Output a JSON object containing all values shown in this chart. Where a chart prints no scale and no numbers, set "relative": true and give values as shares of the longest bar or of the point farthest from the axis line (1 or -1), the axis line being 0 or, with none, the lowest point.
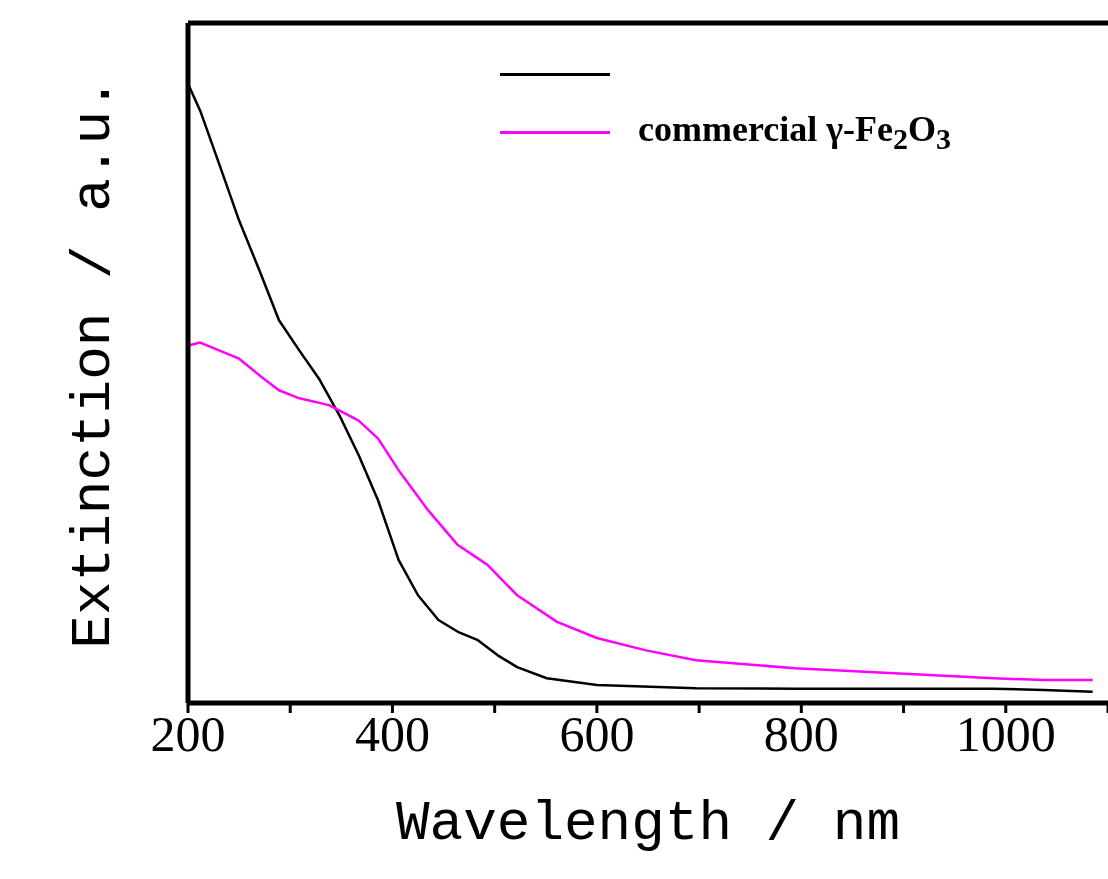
{
  "chart_data": {
    "type": "line",
    "xlabel": "Wavelength / nm",
    "ylabel": "Extinction / a.u.",
    "relative": true,
    "xlim": [
      200,
      1100
    ],
    "xticks": [
      200,
      {
        "value": 300,
        "label": null
      },
      400,
      {
        "value": 500,
        "label": null
      },
      600,
      {
        "value": 700,
        "label": null
      },
      800,
      {
        "value": 900,
        "label": null
      },
      1000,
      {
        "value": 1100,
        "label": null
      }
    ],
    "legend": "top right",
    "marker": "none",
    "line_style": "solid",
    "series": [
      {
        "color": "#000000",
        "x": [
          200,
          212,
          231,
          250,
          270,
          289,
          309,
          328,
          348,
          367,
          386,
          406,
          425,
          445,
          464,
          483,
          503,
          522,
          551,
          600,
          697,
          794,
          988,
          1037,
          1085
        ],
        "values": [
          1.0,
          0.956,
          0.868,
          0.779,
          0.698,
          0.618,
          0.569,
          0.524,
          0.465,
          0.4,
          0.327,
          0.231,
          0.174,
          0.134,
          0.115,
          0.102,
          0.077,
          0.058,
          0.04,
          0.029,
          0.024,
          0.023,
          0.023,
          0.021,
          0.018
        ]
      },
      {
        "name": "commercial γ-Fe$_{2}$O$_{3}$",
        "color": "#ff00ff",
        "x": [
          200,
          212,
          250,
          270,
          289,
          309,
          338,
          367,
          386,
          406,
          435,
          464,
          493,
          522,
          561,
          600,
          648,
          697,
          794,
          891,
          988,
          1037,
          1085
        ],
        "values": [
          0.577,
          0.582,
          0.556,
          0.529,
          0.505,
          0.492,
          0.481,
          0.456,
          0.427,
          0.376,
          0.311,
          0.255,
          0.223,
          0.174,
          0.131,
          0.105,
          0.085,
          0.069,
          0.056,
          0.048,
          0.04,
          0.037,
          0.037
        ]
      }
    ]
  }
}
